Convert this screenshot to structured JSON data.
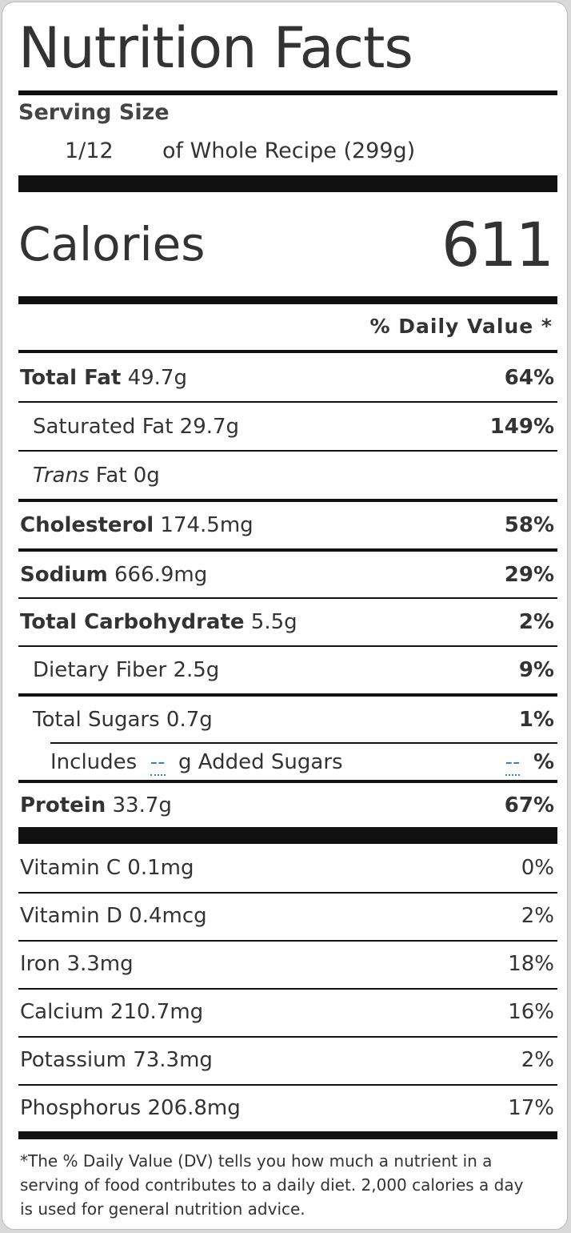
{
  "title": "Nutrition Facts",
  "serving": {
    "label": "Serving Size",
    "amount": "1/12",
    "description": "of Whole Recipe (299g)"
  },
  "calories": {
    "label": "Calories",
    "value": 611
  },
  "daily_value_header": "% Daily Value *",
  "nutrients": [
    {
      "name": "Total Fat",
      "amount": "49.7g",
      "dv": "64%"
    },
    {
      "name": "Saturated Fat",
      "amount": "29.7g",
      "dv": "149%"
    },
    {
      "name_italic": "Trans",
      "name": "Fat",
      "amount": "0g"
    },
    {
      "name": "Cholesterol",
      "amount": "174.5mg",
      "dv": "58%"
    },
    {
      "name": "Sodium",
      "amount": "666.9mg",
      "dv": "29%"
    },
    {
      "name": "Total Carbohydrate",
      "amount": "5.5g",
      "dv": "2%"
    },
    {
      "name": "Dietary Fiber",
      "amount": "2.5g",
      "dv": "9%"
    },
    {
      "name": "Total Sugars",
      "amount": "0.7g",
      "dv": "1%"
    },
    {
      "name": "Protein",
      "amount": "33.7g",
      "dv": "67%"
    }
  ],
  "added_sugars": {
    "prefix": "Includes",
    "amount": "--",
    "label": "g Added Sugars",
    "dv": "--",
    "dv_unit": "%"
  },
  "vitamins": [
    {
      "name": "Vitamin C",
      "amount": "0.1mg",
      "dv": "0%"
    },
    {
      "name": "Vitamin D",
      "amount": "0.4mcg",
      "dv": "2%"
    },
    {
      "name": "Iron",
      "amount": "3.3mg",
      "dv": "18%"
    },
    {
      "name": "Calcium",
      "amount": "210.7mg",
      "dv": "16%"
    },
    {
      "name": "Potassium",
      "amount": "73.3mg",
      "dv": "2%"
    },
    {
      "name": "Phosphorus",
      "amount": "206.8mg",
      "dv": "17%"
    }
  ],
  "footnote": "*The % Daily Value (DV) tells you how much a nutrient in a serving of food contributes to a daily diet. 2,000 calories a day is used for general nutrition advice."
}
